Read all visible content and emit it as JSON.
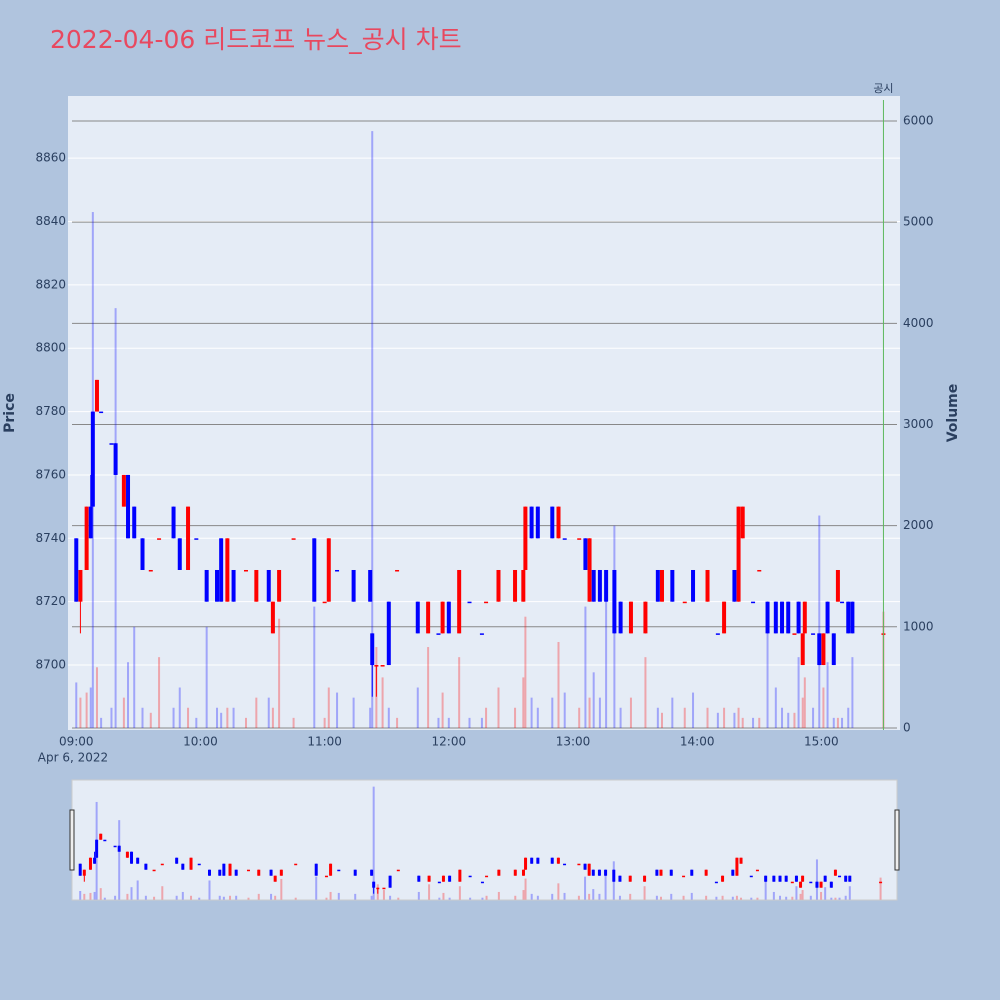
{
  "chart_data": {
    "type": "candlestick",
    "title": "2022-04-06 리드코프 뉴스_공시 차트",
    "y_label": "Price",
    "y2_label": "Volume",
    "x_date_label": "Apr 6, 2022",
    "increasing_color": "#ff0000",
    "decreasing_color": "#0000ff",
    "x": [
      "09:00",
      "09:02",
      "09:05",
      "09:07",
      "09:08",
      "09:10",
      "09:12",
      "09:17",
      "09:19",
      "09:23",
      "09:25",
      "09:28",
      "09:32",
      "09:36",
      "09:40",
      "09:47",
      "09:50",
      "09:54",
      "09:58",
      "10:03",
      "10:08",
      "10:10",
      "10:13",
      "10:16",
      "10:22",
      "10:27",
      "10:33",
      "10:35",
      "10:38",
      "10:45",
      "10:55",
      "11:00",
      "11:02",
      "11:06",
      "11:14",
      "11:22",
      "11:23",
      "11:25",
      "11:28",
      "11:31",
      "11:35",
      "11:45",
      "11:50",
      "11:55",
      "11:57",
      "12:00",
      "12:05",
      "12:10",
      "12:16",
      "12:18",
      "12:24",
      "12:32",
      "12:36",
      "12:37",
      "12:40",
      "12:43",
      "12:50",
      "12:53",
      "12:56",
      "13:03",
      "13:06",
      "13:08",
      "13:10",
      "13:13",
      "13:16",
      "13:20",
      "13:23",
      "13:28",
      "13:35",
      "13:41",
      "13:43",
      "13:48",
      "13:54",
      "13:58",
      "14:05",
      "14:10",
      "14:13",
      "14:18",
      "14:20",
      "14:22",
      "14:27",
      "14:30",
      "14:34",
      "14:38",
      "14:41",
      "14:44",
      "14:47",
      "14:49",
      "14:51",
      "14:52",
      "14:56",
      "14:59",
      "15:01",
      "15:03",
      "15:06",
      "15:08",
      "15:10",
      "15:13",
      "15:15",
      "15:30"
    ],
    "open": [
      8740,
      8720,
      8730,
      8750,
      8780,
      8780,
      8780,
      8770,
      8770,
      8750,
      8760,
      8750,
      8740,
      8730,
      8740,
      8750,
      8740,
      8730,
      8740,
      8730,
      8730,
      8740,
      8720,
      8730,
      8730,
      8720,
      8730,
      8710,
      8720,
      8740,
      8740,
      8720,
      8720,
      8730,
      8730,
      8730,
      8710,
      8700,
      8700,
      8720,
      8730,
      8720,
      8710,
      8710,
      8710,
      8720,
      8710,
      8720,
      8710,
      8720,
      8720,
      8720,
      8720,
      8730,
      8750,
      8750,
      8750,
      8740,
      8740,
      8740,
      8740,
      8720,
      8730,
      8730,
      8730,
      8730,
      8720,
      8710,
      8710,
      8730,
      8720,
      8730,
      8720,
      8730,
      8720,
      8710,
      8710,
      8730,
      8720,
      8740,
      8720,
      8730,
      8720,
      8720,
      8720,
      8720,
      8710,
      8720,
      8700,
      8710,
      8710,
      8710,
      8700,
      8720,
      8710,
      8720,
      8720,
      8720,
      8720,
      8710
    ],
    "high": [
      8740,
      8730,
      8750,
      8760,
      8780,
      8790,
      8780,
      8770,
      8770,
      8760,
      8760,
      8750,
      8740,
      8730,
      8740,
      8750,
      8740,
      8750,
      8740,
      8730,
      8730,
      8740,
      8740,
      8730,
      8730,
      8730,
      8730,
      8720,
      8730,
      8740,
      8740,
      8720,
      8740,
      8730,
      8730,
      8730,
      8710,
      8700,
      8700,
      8720,
      8730,
      8720,
      8720,
      8710,
      8720,
      8720,
      8730,
      8720,
      8710,
      8720,
      8730,
      8730,
      8730,
      8750,
      8750,
      8750,
      8750,
      8750,
      8740,
      8740,
      8740,
      8740,
      8730,
      8730,
      8730,
      8730,
      8720,
      8720,
      8720,
      8730,
      8730,
      8730,
      8720,
      8730,
      8730,
      8710,
      8720,
      8730,
      8750,
      8750,
      8720,
      8730,
      8720,
      8720,
      8720,
      8720,
      8710,
      8720,
      8710,
      8720,
      8710,
      8710,
      8710,
      8720,
      8710,
      8730,
      8720,
      8720,
      8720,
      8710
    ],
    "low": [
      8720,
      8710,
      8730,
      8740,
      8750,
      8780,
      8780,
      8770,
      8760,
      8750,
      8740,
      8740,
      8730,
      8730,
      8740,
      8740,
      8730,
      8730,
      8740,
      8720,
      8720,
      8720,
      8720,
      8720,
      8730,
      8720,
      8720,
      8710,
      8720,
      8740,
      8720,
      8720,
      8720,
      8730,
      8720,
      8720,
      8690,
      8690,
      8700,
      8700,
      8730,
      8710,
      8710,
      8710,
      8710,
      8710,
      8710,
      8720,
      8710,
      8720,
      8720,
      8720,
      8720,
      8730,
      8740,
      8740,
      8740,
      8740,
      8740,
      8740,
      8730,
      8720,
      8720,
      8720,
      8720,
      8710,
      8710,
      8710,
      8710,
      8720,
      8720,
      8720,
      8720,
      8720,
      8720,
      8710,
      8710,
      8720,
      8720,
      8740,
      8720,
      8730,
      8710,
      8710,
      8710,
      8710,
      8710,
      8710,
      8700,
      8710,
      8710,
      8700,
      8700,
      8710,
      8700,
      8720,
      8720,
      8710,
      8710,
      8710
    ],
    "close": [
      8720,
      8730,
      8750,
      8740,
      8750,
      8790,
      8780,
      8770,
      8760,
      8760,
      8740,
      8740,
      8730,
      8730,
      8740,
      8740,
      8730,
      8750,
      8740,
      8720,
      8720,
      8720,
      8740,
      8720,
      8730,
      8730,
      8720,
      8720,
      8730,
      8740,
      8720,
      8720,
      8740,
      8730,
      8720,
      8720,
      8700,
      8700,
      8700,
      8700,
      8730,
      8710,
      8720,
      8710,
      8720,
      8710,
      8730,
      8720,
      8710,
      8720,
      8730,
      8730,
      8730,
      8750,
      8740,
      8740,
      8740,
      8750,
      8740,
      8740,
      8730,
      8740,
      8720,
      8720,
      8720,
      8710,
      8710,
      8720,
      8720,
      8720,
      8730,
      8720,
      8720,
      8720,
      8730,
      8710,
      8720,
      8720,
      8750,
      8750,
      8720,
      8730,
      8710,
      8710,
      8710,
      8710,
      8710,
      8710,
      8710,
      8720,
      8710,
      8700,
      8710,
      8710,
      8700,
      8730,
      8720,
      8710,
      8710,
      8710
    ],
    "volume": [
      450,
      300,
      350,
      400,
      5100,
      600,
      100,
      200,
      4150,
      300,
      650,
      1000,
      200,
      150,
      700,
      200,
      400,
      200,
      100,
      1000,
      200,
      150,
      200,
      200,
      100,
      300,
      300,
      200,
      1080,
      100,
      1200,
      100,
      400,
      350,
      300,
      200,
      5900,
      800,
      500,
      200,
      100,
      400,
      800,
      100,
      350,
      100,
      700,
      100,
      100,
      200,
      400,
      200,
      500,
      1100,
      300,
      200,
      300,
      850,
      350,
      200,
      1200,
      300,
      550,
      300,
      1350,
      2000,
      200,
      300,
      700,
      200,
      150,
      300,
      200,
      350,
      200,
      150,
      200,
      150,
      200,
      100,
      100,
      100,
      1000,
      400,
      200,
      150,
      150,
      700,
      300,
      500,
      200,
      2100,
      400,
      650,
      100,
      100,
      100,
      200,
      700,
      1150
    ],
    "xlim": [
      "08:56",
      "15:38"
    ],
    "xticks": [
      "09:00",
      "10:00",
      "11:00",
      "12:00",
      "13:00",
      "14:00",
      "15:00"
    ],
    "ylim": [
      8679.5,
      8879.6
    ],
    "yticks": [
      8700,
      8720,
      8740,
      8760,
      8780,
      8800,
      8820,
      8840,
      8860
    ],
    "y2lim": [
      -20,
      6247
    ],
    "y2ticks": [
      0,
      1000,
      2000,
      3000,
      4000,
      5000,
      6000
    ],
    "event": {
      "x": "15:30",
      "label": "공시",
      "color": "#5cb85c"
    }
  }
}
